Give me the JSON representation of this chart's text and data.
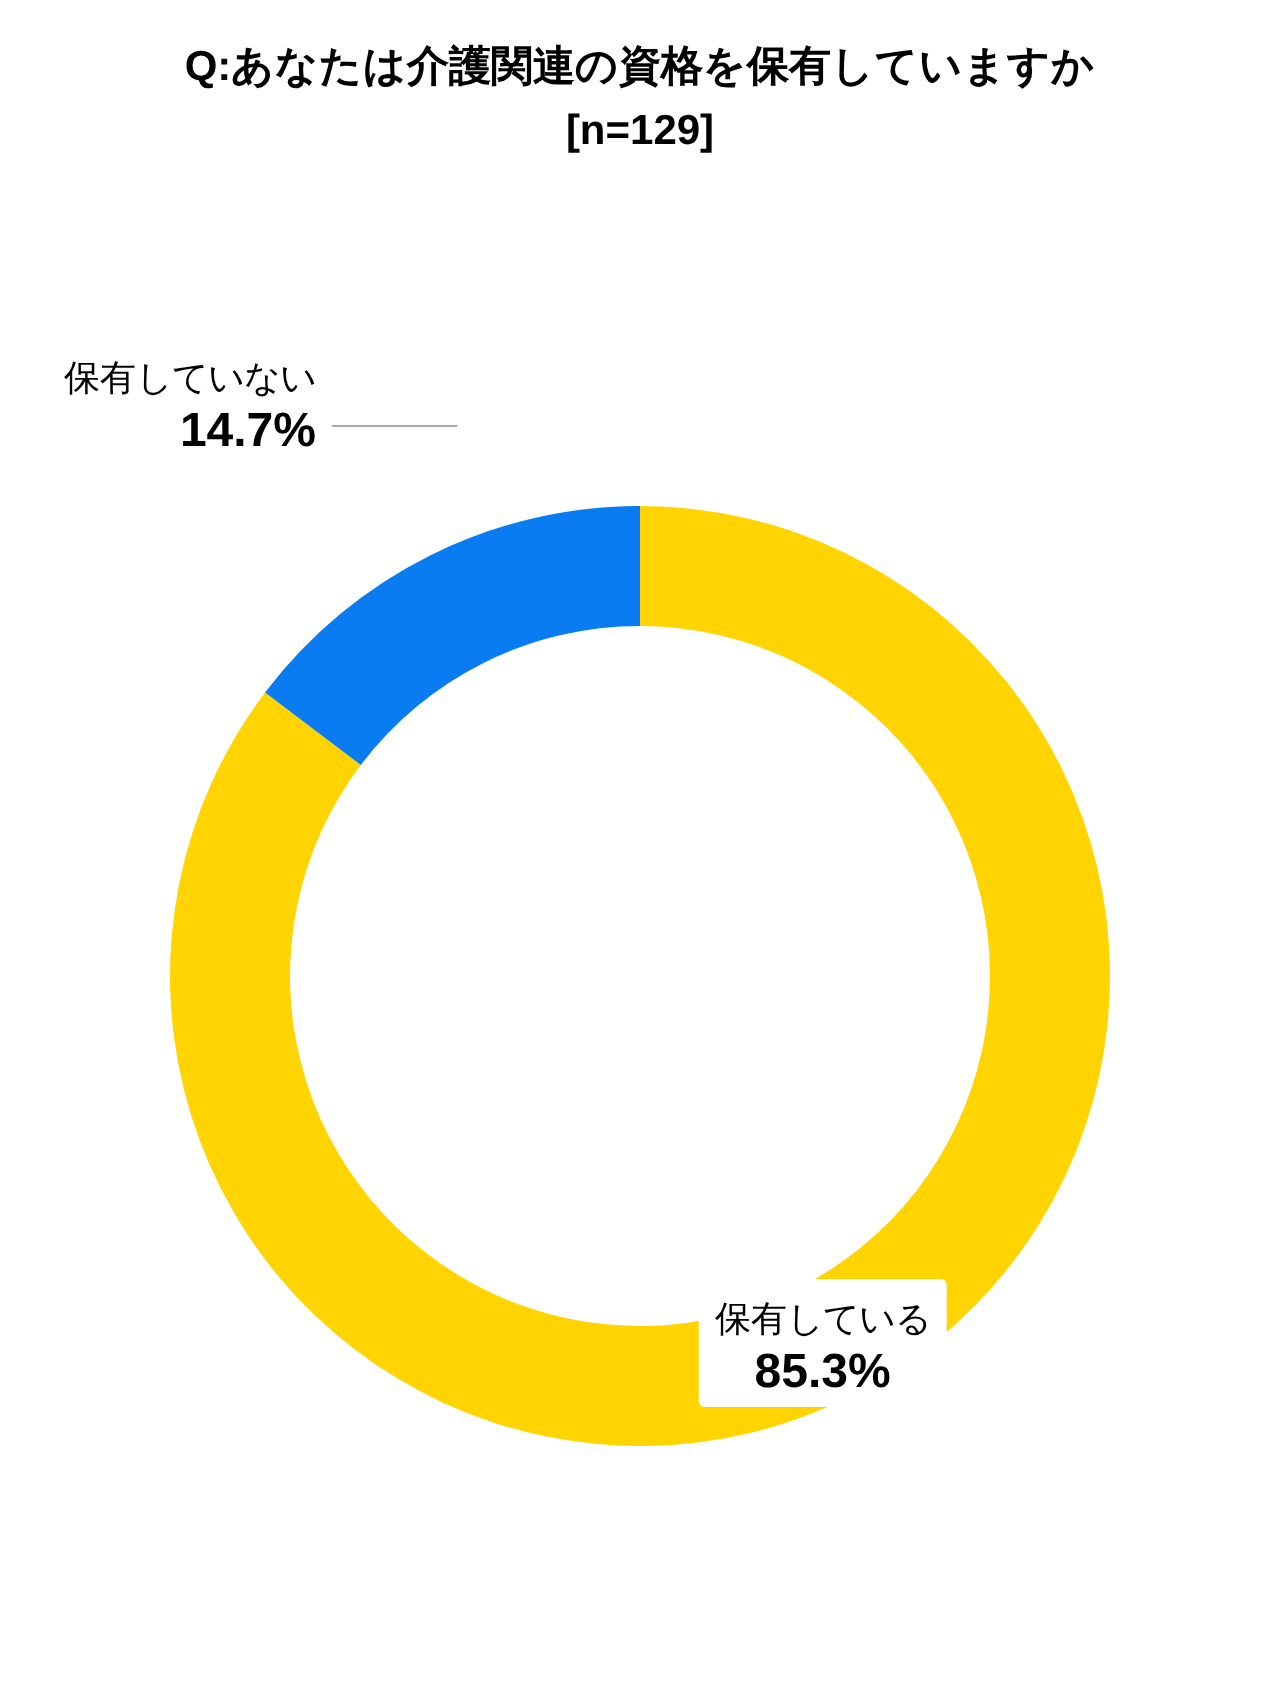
{
  "chart_data": {
    "type": "donut",
    "title": "Q:あなたは介護関連の資格を保有していますか",
    "subtitle": "[n=129]",
    "categories": [
      "保有している",
      "保有していない"
    ],
    "values": [
      85.3,
      14.7
    ],
    "colors": [
      "#ffd400",
      "#0a7cf2"
    ],
    "value_labels": [
      "85.3%",
      "14.7%"
    ]
  }
}
